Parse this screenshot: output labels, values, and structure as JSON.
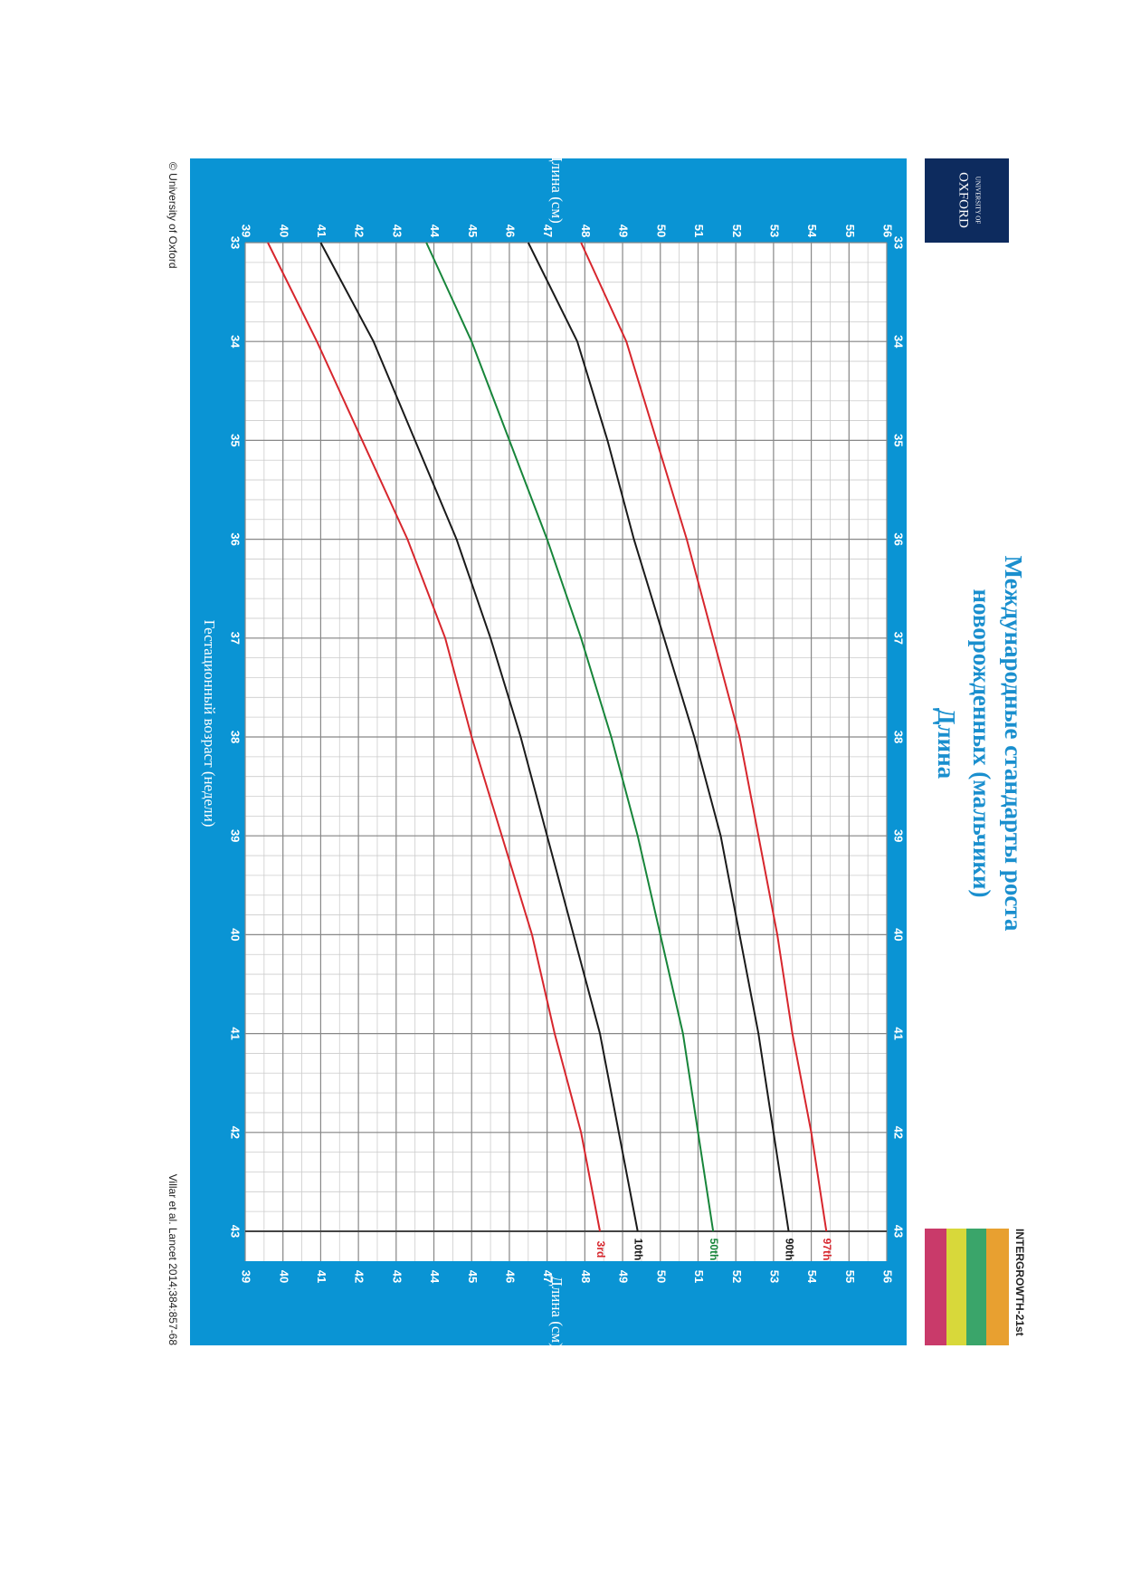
{
  "chart_data": {
    "type": "line",
    "title": [
      "Международные стандарты роста",
      "новорожденных (мальчики)"
    ],
    "subtitle": "Длина",
    "x_label": "Гестационный возраст (недели)",
    "y_label": "Длина (см)",
    "x": [
      33,
      34,
      35,
      36,
      37,
      38,
      39,
      40,
      41,
      42,
      43
    ],
    "xlim": [
      33,
      43
    ],
    "xticks": [
      33,
      34,
      35,
      36,
      37,
      38,
      39,
      40,
      41,
      42,
      43
    ],
    "ylim": [
      39,
      56
    ],
    "yticks": [
      39,
      40,
      41,
      42,
      43,
      44,
      45,
      46,
      47,
      48,
      49,
      50,
      51,
      52,
      53,
      54,
      55,
      56
    ],
    "grid": true,
    "series": [
      {
        "name": "3rd",
        "color": "#d7262d",
        "values": [
          39.6,
          40.9,
          42.1,
          43.3,
          44.3,
          45.0,
          45.8,
          46.6,
          47.2,
          47.9,
          48.4
        ]
      },
      {
        "name": "10th",
        "color": "#1a1a1a",
        "values": [
          41.0,
          42.4,
          43.5,
          44.6,
          45.5,
          46.3,
          47.0,
          47.7,
          48.4,
          48.9,
          49.4
        ]
      },
      {
        "name": "50th",
        "color": "#17853a",
        "values": [
          43.8,
          45.0,
          46.0,
          47.0,
          47.9,
          48.7,
          49.4,
          50.0,
          50.6,
          51.0,
          51.4
        ]
      },
      {
        "name": "90th",
        "color": "#1a1a1a",
        "values": [
          46.5,
          47.8,
          48.6,
          49.3,
          50.1,
          50.9,
          51.6,
          52.1,
          52.6,
          53.0,
          53.4
        ]
      },
      {
        "name": "97th",
        "color": "#d7262d",
        "values": [
          47.9,
          49.1,
          49.9,
          50.7,
          51.4,
          52.1,
          52.6,
          53.1,
          53.5,
          54.0,
          54.4
        ]
      }
    ]
  },
  "copyright": "© University of Oxford",
  "citation": "Villar et al. Lancet 2014;384:857-68",
  "logos": {
    "oxford": [
      "UNIVERSITY OF",
      "OXFORD"
    ],
    "intergrowth": "INTERGROWTH-21st"
  }
}
